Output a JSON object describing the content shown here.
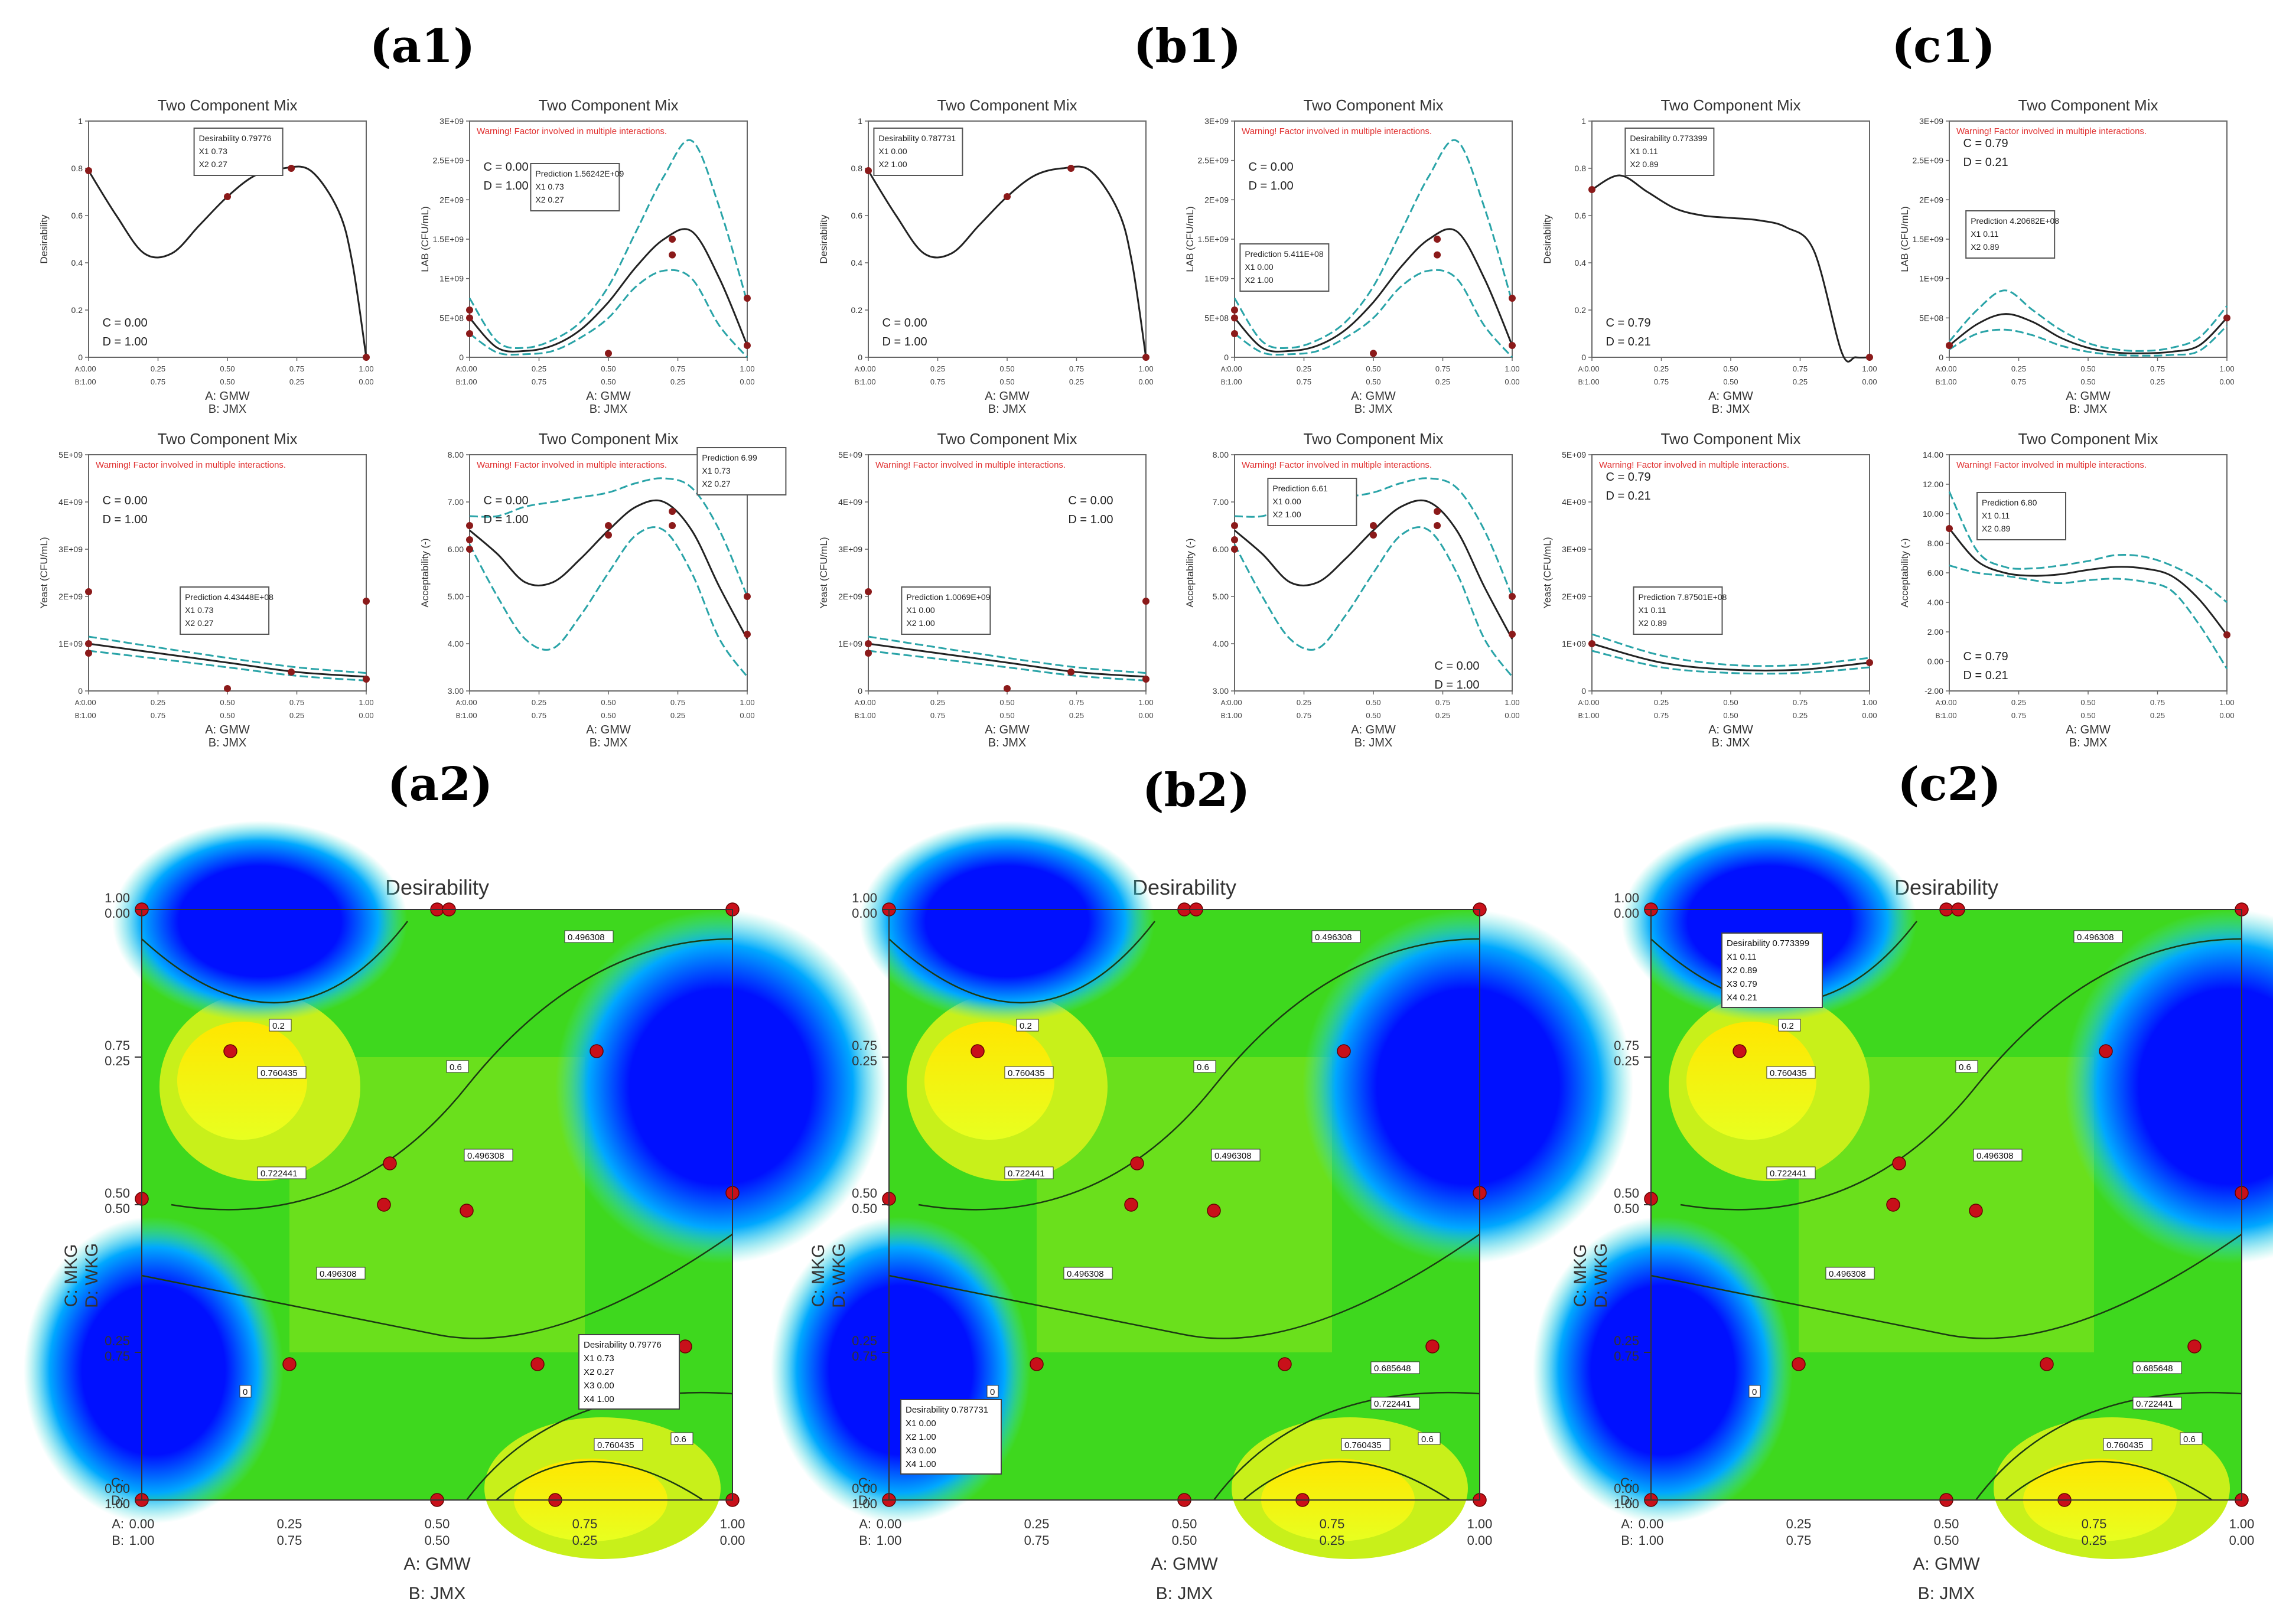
{
  "panel_labels": [
    "(a1)",
    "(b1)",
    "(c1)",
    "(a2)",
    "(b2)",
    "(c2)"
  ],
  "colors": {
    "curve": "#222222",
    "ci": "#2aa4a8",
    "point": "#8b1a1a",
    "warning": "#e03030",
    "box_border": "#555555"
  },
  "warning_text": "Warning! Factor involved in multiple interactions.",
  "axis_a": "A: GMW",
  "axis_b": "B: JMX",
  "x_ticks_a": [
    "0.00",
    "0.25",
    "0.50",
    "0.75",
    "1.00"
  ],
  "x_ticks_b": [
    "1.00",
    "0.75",
    "0.50",
    "0.25",
    "0.00"
  ],
  "chart_data": [
    {
      "id": "a1-desirability",
      "type": "line",
      "title": "Two Component Mix",
      "ylabel": "Desirability",
      "ylim": [
        0,
        1
      ],
      "yticks": [
        "0",
        "0.2",
        "0.4",
        "0.6",
        "0.8",
        "1"
      ],
      "x": [
        0,
        0.1,
        0.2,
        0.3,
        0.4,
        0.5,
        0.6,
        0.7,
        0.8,
        0.9,
        0.95,
        1.0
      ],
      "y": [
        0.79,
        0.6,
        0.44,
        0.44,
        0.56,
        0.68,
        0.77,
        0.8,
        0.79,
        0.62,
        0.4,
        0
      ],
      "points": [
        [
          0,
          0.79
        ],
        [
          0.5,
          0.68
        ],
        [
          0.73,
          0.8
        ],
        [
          1,
          0
        ]
      ],
      "c_text": "C = 0.00",
      "d_text": "D = 1.00",
      "box": [
        "Desirability 0.79776",
        "X1 0.73",
        "X2 0.27"
      ]
    },
    {
      "id": "a1-lab",
      "type": "line",
      "title": "Two Component Mix",
      "ylabel": "LAB (CFU/mL)",
      "ylim": [
        0,
        3
      ],
      "yticks": [
        "0",
        "5E+08",
        "1E+09",
        "1.5E+09",
        "2E+09",
        "2.5E+09",
        "3E+09"
      ],
      "x": [
        0,
        0.1,
        0.2,
        0.3,
        0.4,
        0.5,
        0.6,
        0.7,
        0.8,
        0.9,
        1.0
      ],
      "y": [
        0.5,
        0.12,
        0.08,
        0.15,
        0.35,
        0.7,
        1.15,
        1.5,
        1.6,
        1.0,
        0.15
      ],
      "upper": [
        0.75,
        0.2,
        0.12,
        0.22,
        0.45,
        0.9,
        1.6,
        2.3,
        2.75,
        1.9,
        0.7
      ],
      "lower": [
        0.3,
        0.06,
        0.04,
        0.08,
        0.25,
        0.5,
        0.9,
        1.1,
        1.0,
        0.4,
        0
      ],
      "points": [
        [
          0,
          0.5
        ],
        [
          0,
          0.6
        ],
        [
          0,
          0.3
        ],
        [
          0.5,
          0.05
        ],
        [
          0.73,
          1.5
        ],
        [
          0.73,
          1.3
        ],
        [
          1,
          0.75
        ],
        [
          1,
          0.15
        ]
      ],
      "c_text": "C = 0.00",
      "d_text": "D = 1.00",
      "box": [
        "Prediction 1.56242E+09",
        "X1 0.73",
        "X2 0.27"
      ]
    },
    {
      "id": "a1-yeast",
      "type": "line",
      "title": "Two Component Mix",
      "ylabel": "Yeast (CFU/mL)",
      "ylim": [
        0,
        5
      ],
      "yticks": [
        "0",
        "1E+09",
        "2E+09",
        "3E+09",
        "4E+09",
        "5E+09"
      ],
      "x": [
        0,
        0.25,
        0.5,
        0.75,
        1.0
      ],
      "y": [
        1.0,
        0.8,
        0.6,
        0.4,
        0.3
      ],
      "upper": [
        1.15,
        0.92,
        0.7,
        0.5,
        0.38
      ],
      "lower": [
        0.85,
        0.68,
        0.5,
        0.32,
        0.22
      ],
      "points": [
        [
          0,
          1.0
        ],
        [
          0,
          2.1
        ],
        [
          0,
          0.8
        ],
        [
          0.5,
          0.05
        ],
        [
          0.73,
          0.4
        ],
        [
          1,
          1.9
        ],
        [
          1,
          0.25
        ]
      ],
      "c_text": "C = 0.00",
      "d_text": "D = 1.00",
      "box": [
        "Prediction 4.43448E+08",
        "X1 0.73",
        "X2 0.27"
      ]
    },
    {
      "id": "a1-acceptability",
      "type": "line",
      "title": "Two Component Mix",
      "ylabel": "Acceptability (-)",
      "ylim": [
        3,
        8
      ],
      "yticks": [
        "3.00",
        "4.00",
        "5.00",
        "6.00",
        "7.00",
        "8.00"
      ],
      "x": [
        0,
        0.1,
        0.2,
        0.3,
        0.4,
        0.5,
        0.6,
        0.7,
        0.8,
        0.9,
        1.0
      ],
      "y": [
        6.4,
        5.9,
        5.3,
        5.3,
        5.8,
        6.4,
        6.9,
        7.0,
        6.4,
        5.2,
        4.1
      ],
      "upper": [
        6.7,
        6.7,
        6.9,
        7.0,
        7.1,
        7.2,
        7.4,
        7.5,
        7.3,
        6.4,
        5.0
      ],
      "lower": [
        6.1,
        5.0,
        4.1,
        3.9,
        4.6,
        5.5,
        6.3,
        6.4,
        5.5,
        4.1,
        3.3
      ],
      "points": [
        [
          0,
          6.2
        ],
        [
          0,
          6.5
        ],
        [
          0,
          6.0
        ],
        [
          0.5,
          6.3
        ],
        [
          0.5,
          6.5
        ],
        [
          0.73,
          6.8
        ],
        [
          0.73,
          6.5
        ],
        [
          1,
          5.0
        ],
        [
          1,
          4.2
        ]
      ],
      "c_text": "C = 0.00",
      "d_text": "D = 1.00",
      "box": [
        "Prediction 6.99",
        "X1 0.73",
        "X2 0.27"
      ]
    },
    {
      "id": "b1-desirability",
      "type": "line",
      "title": "Two Component Mix",
      "ylabel": "Desirability",
      "ylim": [
        0,
        1
      ],
      "yticks": [
        "0",
        "0.2",
        "0.4",
        "0.6",
        "0.8",
        "1"
      ],
      "x": [
        0,
        0.1,
        0.2,
        0.3,
        0.4,
        0.5,
        0.6,
        0.7,
        0.8,
        0.9,
        0.95,
        1.0
      ],
      "y": [
        0.79,
        0.6,
        0.44,
        0.44,
        0.56,
        0.68,
        0.77,
        0.8,
        0.79,
        0.62,
        0.4,
        0
      ],
      "points": [
        [
          0,
          0.79
        ],
        [
          0.5,
          0.68
        ],
        [
          0.73,
          0.8
        ],
        [
          1,
          0
        ]
      ],
      "c_text": "C = 0.00",
      "d_text": "D = 1.00",
      "box": [
        "Desirability 0.787731",
        "X1 0.00",
        "X2 1.00"
      ]
    },
    {
      "id": "b1-lab",
      "type": "line",
      "title": "Two Component Mix",
      "ylabel": "LAB (CFU/mL)",
      "ylim": [
        0,
        3
      ],
      "yticks": [
        "0",
        "5E+08",
        "1E+09",
        "1.5E+09",
        "2E+09",
        "2.5E+09",
        "3E+09"
      ],
      "x": [
        0,
        0.1,
        0.2,
        0.3,
        0.4,
        0.5,
        0.6,
        0.7,
        0.8,
        0.9,
        1.0
      ],
      "y": [
        0.5,
        0.12,
        0.08,
        0.15,
        0.35,
        0.7,
        1.15,
        1.5,
        1.6,
        1.0,
        0.15
      ],
      "upper": [
        0.75,
        0.2,
        0.12,
        0.22,
        0.45,
        0.9,
        1.6,
        2.3,
        2.75,
        1.9,
        0.7
      ],
      "lower": [
        0.3,
        0.06,
        0.04,
        0.08,
        0.25,
        0.5,
        0.9,
        1.1,
        1.0,
        0.4,
        0
      ],
      "points": [
        [
          0,
          0.5
        ],
        [
          0,
          0.6
        ],
        [
          0,
          0.3
        ],
        [
          0.5,
          0.05
        ],
        [
          0.73,
          1.5
        ],
        [
          0.73,
          1.3
        ],
        [
          1,
          0.75
        ],
        [
          1,
          0.15
        ]
      ],
      "c_text": "C = 0.00",
      "d_text": "D = 1.00",
      "box": [
        "Prediction 5.411E+08",
        "X1 0.00",
        "X2 1.00"
      ]
    },
    {
      "id": "b1-yeast",
      "type": "line",
      "title": "Two Component Mix",
      "ylabel": "Yeast (CFU/mL)",
      "ylim": [
        0,
        5
      ],
      "yticks": [
        "0",
        "1E+09",
        "2E+09",
        "3E+09",
        "4E+09",
        "5E+09"
      ],
      "x": [
        0,
        0.25,
        0.5,
        0.75,
        1.0
      ],
      "y": [
        1.0,
        0.8,
        0.6,
        0.4,
        0.3
      ],
      "upper": [
        1.15,
        0.92,
        0.7,
        0.5,
        0.38
      ],
      "lower": [
        0.85,
        0.68,
        0.5,
        0.32,
        0.22
      ],
      "points": [
        [
          0,
          1.0
        ],
        [
          0,
          2.1
        ],
        [
          0,
          0.8
        ],
        [
          0.5,
          0.05
        ],
        [
          0.73,
          0.4
        ],
        [
          1,
          1.9
        ],
        [
          1,
          0.25
        ]
      ],
      "c_text": "C = 0.00",
      "d_text": "D = 1.00",
      "box": [
        "Prediction 1.0069E+09",
        "X1 0.00",
        "X2 1.00"
      ]
    },
    {
      "id": "b1-acceptability",
      "type": "line",
      "title": "Two Component Mix",
      "ylabel": "Acceptability (-)",
      "ylim": [
        3,
        8
      ],
      "yticks": [
        "3.00",
        "4.00",
        "5.00",
        "6.00",
        "7.00",
        "8.00"
      ],
      "x": [
        0,
        0.1,
        0.2,
        0.3,
        0.4,
        0.5,
        0.6,
        0.7,
        0.8,
        0.9,
        1.0
      ],
      "y": [
        6.4,
        5.9,
        5.3,
        5.3,
        5.8,
        6.4,
        6.9,
        7.0,
        6.4,
        5.2,
        4.1
      ],
      "upper": [
        6.7,
        6.7,
        6.9,
        7.0,
        7.1,
        7.2,
        7.4,
        7.5,
        7.3,
        6.4,
        5.0
      ],
      "lower": [
        6.1,
        5.0,
        4.1,
        3.9,
        4.6,
        5.5,
        6.3,
        6.4,
        5.5,
        4.1,
        3.3
      ],
      "points": [
        [
          0,
          6.2
        ],
        [
          0,
          6.5
        ],
        [
          0,
          6.0
        ],
        [
          0.5,
          6.3
        ],
        [
          0.5,
          6.5
        ],
        [
          0.73,
          6.8
        ],
        [
          0.73,
          6.5
        ],
        [
          1,
          5.0
        ],
        [
          1,
          4.2
        ]
      ],
      "c_text": "C = 0.00",
      "d_text": "D = 1.00",
      "box": [
        "Prediction 6.61",
        "X1 0.00",
        "X2 1.00"
      ]
    },
    {
      "id": "c1-desirability",
      "type": "line",
      "title": "Two Component Mix",
      "ylabel": "Desirability",
      "ylim": [
        0,
        1
      ],
      "yticks": [
        "0",
        "0.2",
        "0.4",
        "0.6",
        "0.8",
        "1"
      ],
      "x": [
        0,
        0.1,
        0.2,
        0.3,
        0.4,
        0.5,
        0.6,
        0.7,
        0.8,
        0.9,
        0.95,
        1.0
      ],
      "y": [
        0.71,
        0.77,
        0.7,
        0.63,
        0.6,
        0.59,
        0.58,
        0.55,
        0.45,
        0.02,
        0,
        0
      ],
      "points": [
        [
          0,
          0.71
        ],
        [
          1,
          0
        ]
      ],
      "c_text": "C = 0.79",
      "d_text": "D = 0.21",
      "box": [
        "Desirability 0.773399",
        "X1 0.11",
        "X2 0.89"
      ]
    },
    {
      "id": "c1-lab",
      "type": "line",
      "title": "Two Component Mix",
      "ylabel": "LAB (CFU/mL)",
      "ylim": [
        0,
        3
      ],
      "yticks": [
        "0",
        "5E+08",
        "1E+09",
        "1.5E+09",
        "2E+09",
        "2.5E+09",
        "3E+09"
      ],
      "x": [
        0,
        0.1,
        0.2,
        0.3,
        0.4,
        0.5,
        0.6,
        0.7,
        0.8,
        0.9,
        1.0
      ],
      "y": [
        0.15,
        0.42,
        0.55,
        0.45,
        0.25,
        0.12,
        0.06,
        0.05,
        0.07,
        0.15,
        0.5
      ],
      "upper": [
        0.2,
        0.6,
        0.85,
        0.6,
        0.35,
        0.18,
        0.1,
        0.08,
        0.12,
        0.25,
        0.65
      ],
      "lower": [
        0.1,
        0.3,
        0.35,
        0.28,
        0.15,
        0.07,
        0.03,
        0.02,
        0.03,
        0.08,
        0.4
      ],
      "points": [
        [
          0,
          0.15
        ],
        [
          1,
          0.5
        ]
      ],
      "c_text": "C = 0.79",
      "d_text": "D = 0.21",
      "box": [
        "Prediction 4.20682E+08",
        "X1 0.11",
        "X2 0.89"
      ]
    },
    {
      "id": "c1-yeast",
      "type": "line",
      "title": "Two Component Mix",
      "ylabel": "Yeast (CFU/mL)",
      "ylim": [
        0,
        5
      ],
      "yticks": [
        "0",
        "1E+09",
        "2E+09",
        "3E+09",
        "4E+09",
        "5E+09"
      ],
      "x": [
        0,
        0.25,
        0.5,
        0.75,
        1.0
      ],
      "y": [
        1.0,
        0.6,
        0.45,
        0.45,
        0.6
      ],
      "upper": [
        1.2,
        0.75,
        0.55,
        0.55,
        0.7
      ],
      "lower": [
        0.85,
        0.5,
        0.38,
        0.38,
        0.5
      ],
      "points": [
        [
          0,
          1.0
        ],
        [
          1,
          0.6
        ]
      ],
      "c_text": "C = 0.79",
      "d_text": "D = 0.21",
      "box": [
        "Prediction 7.87501E+08",
        "X1 0.11",
        "X2 0.89"
      ]
    },
    {
      "id": "c1-acceptability",
      "type": "line",
      "title": "Two Component Mix",
      "ylabel": "Acceptability (-)",
      "ylim": [
        -2,
        14
      ],
      "yticks": [
        "-2.00",
        "0.00",
        "2.00",
        "4.00",
        "6.00",
        "8.00",
        "10.00",
        "12.00",
        "14.00"
      ],
      "x": [
        0,
        0.1,
        0.2,
        0.3,
        0.4,
        0.5,
        0.6,
        0.7,
        0.8,
        0.9,
        1.0
      ],
      "y": [
        9.0,
        6.8,
        6.0,
        5.8,
        5.9,
        6.2,
        6.4,
        6.3,
        5.8,
        4.2,
        1.8
      ],
      "upper": [
        11.5,
        7.5,
        6.4,
        6.3,
        6.5,
        6.8,
        7.2,
        7.1,
        6.5,
        5.5,
        4.0
      ],
      "lower": [
        6.5,
        6.0,
        5.8,
        5.5,
        5.3,
        5.5,
        5.6,
        5.4,
        4.8,
        2.5,
        -0.5
      ],
      "points": [
        [
          0,
          9.0
        ],
        [
          1,
          1.8
        ]
      ],
      "c_text": "C = 0.79",
      "d_text": "D = 0.21",
      "box": [
        "Prediction 6.80",
        "X1 0.11",
        "X2 0.89"
      ]
    },
    {
      "id": "a2-contour",
      "type": "heatmap",
      "title": "Desirability",
      "ylabel_c": "C: MKG",
      "ylabel_d": "D: WKG",
      "left_c": [
        "1.00",
        "0.75",
        "0.50",
        "0.25",
        "0.00"
      ],
      "left_d": [
        "0.00",
        "0.25",
        "0.50",
        "0.75",
        "1.00"
      ],
      "left_prefix_c": "C:",
      "left_prefix_d": "D:",
      "contour_labels": [
        "0.2",
        "0.496308",
        "0.6",
        "0.685648",
        "0.722441",
        "0.760435",
        "0"
      ],
      "box": [
        "Desirability 0.79776",
        "X1 0.73",
        "X2 0.27",
        "X3 0.00",
        "X4 1.00"
      ]
    },
    {
      "id": "b2-contour",
      "type": "heatmap",
      "title": "Desirability",
      "ylabel_c": "C: MKG",
      "ylabel_d": "D: WKG",
      "left_c": [
        "1.00",
        "0.75",
        "0.50",
        "0.25",
        "0.00"
      ],
      "left_d": [
        "0.00",
        "0.25",
        "0.50",
        "0.75",
        "1.00"
      ],
      "left_prefix_c": "C:",
      "left_prefix_d": "D:",
      "contour_labels": [
        "0.2",
        "0.496308",
        "0.6",
        "0.685648",
        "0.722441",
        "0.760435",
        "0"
      ],
      "box": [
        "Desirability 0.787731",
        "X1 0.00",
        "X2 1.00",
        "X3 0.00",
        "X4 1.00"
      ]
    },
    {
      "id": "c2-contour",
      "type": "heatmap",
      "title": "Desirability",
      "ylabel_c": "C: MKG",
      "ylabel_d": "D: WKG",
      "left_c": [
        "1.00",
        "0.75",
        "0.50",
        "0.25",
        "0.00"
      ],
      "left_d": [
        "0.00",
        "0.25",
        "0.50",
        "0.75",
        "1.00"
      ],
      "left_prefix_c": "C:",
      "left_prefix_d": "D:",
      "contour_labels": [
        "0.2",
        "0.496308",
        "0.6",
        "0.685648",
        "0.722441",
        "0.760435",
        "0"
      ],
      "box": [
        "Desirability 0.773399",
        "X1 0.11",
        "X2 0.89",
        "X3 0.79",
        "X4 0.21"
      ]
    }
  ]
}
